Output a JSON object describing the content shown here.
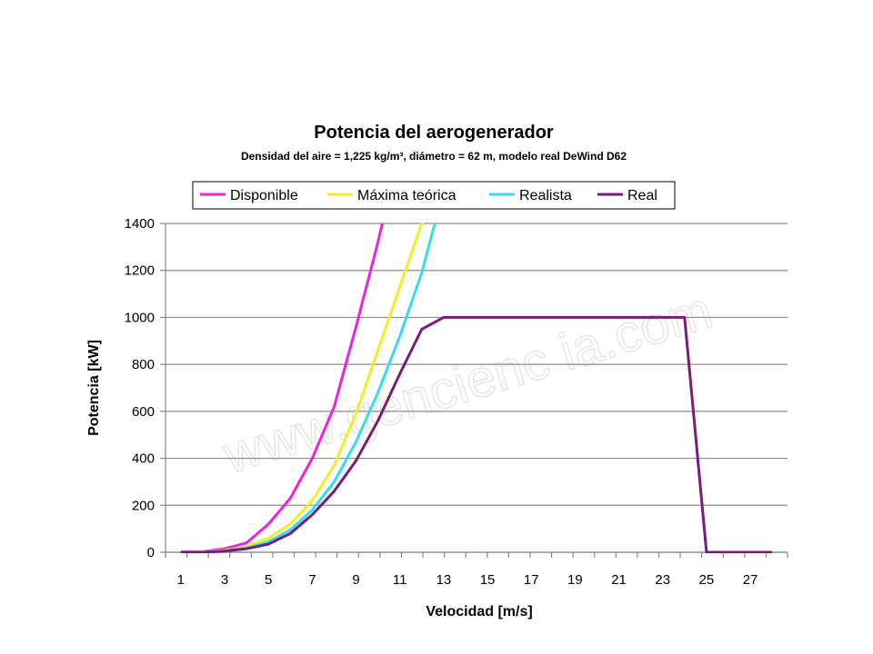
{
  "chart_data": {
    "type": "line",
    "title": "Potencia del aerogenerador",
    "subtitle": "Densidad del aire = 1,225 kg/m³, diámetro = 62 m, modelo real DeWind D62",
    "xlabel": "Velocidad [m/s]",
    "ylabel": "Potencia [kW]",
    "xlim": [
      1,
      28
    ],
    "ylim": [
      0,
      1400
    ],
    "xticks": [
      1,
      3,
      5,
      7,
      9,
      11,
      13,
      15,
      17,
      19,
      21,
      23,
      25,
      27
    ],
    "yticks": [
      0,
      200,
      400,
      600,
      800,
      1000,
      1200,
      1400
    ],
    "grid": "horizontal",
    "legend_position": "top",
    "watermark": "www.gencienc ia.com",
    "series": [
      {
        "name": "Disponible",
        "color": "#ee22dd",
        "x": [
          1,
          2,
          3,
          4,
          5,
          6,
          7,
          8,
          9,
          10,
          10.2
        ],
        "y": [
          1,
          3,
          15,
          40,
          120,
          230,
          400,
          620,
          960,
          1320,
          1400
        ]
      },
      {
        "name": "Máxima teórica",
        "color": "#f0f020",
        "x": [
          1,
          2,
          3,
          4,
          5,
          6,
          7,
          8,
          9,
          10,
          11,
          12,
          12.1
        ],
        "y": [
          0,
          2,
          8,
          25,
          60,
          120,
          220,
          370,
          590,
          860,
          1130,
          1400,
          1400
        ]
      },
      {
        "name": "Realista",
        "color": "#33dded",
        "x": [
          1,
          2,
          3,
          4,
          5,
          6,
          7,
          8,
          9,
          10,
          11,
          12,
          12.6
        ],
        "y": [
          0,
          1,
          6,
          18,
          45,
          95,
          180,
          300,
          470,
          680,
          920,
          1190,
          1400
        ]
      },
      {
        "name": "Real",
        "color": "#7a1a7a",
        "x": [
          1,
          2,
          3,
          4,
          5,
          6,
          7,
          8,
          9,
          10,
          11,
          12,
          13,
          14,
          15,
          16,
          17,
          18,
          19,
          20,
          21,
          22,
          23,
          24,
          25,
          26,
          27,
          28
        ],
        "y": [
          0,
          0,
          5,
          15,
          35,
          80,
          160,
          260,
          390,
          560,
          760,
          950,
          1000,
          1000,
          1000,
          1000,
          1000,
          1000,
          1000,
          1000,
          1000,
          1000,
          1000,
          1000,
          0,
          0,
          0,
          0
        ]
      }
    ]
  }
}
